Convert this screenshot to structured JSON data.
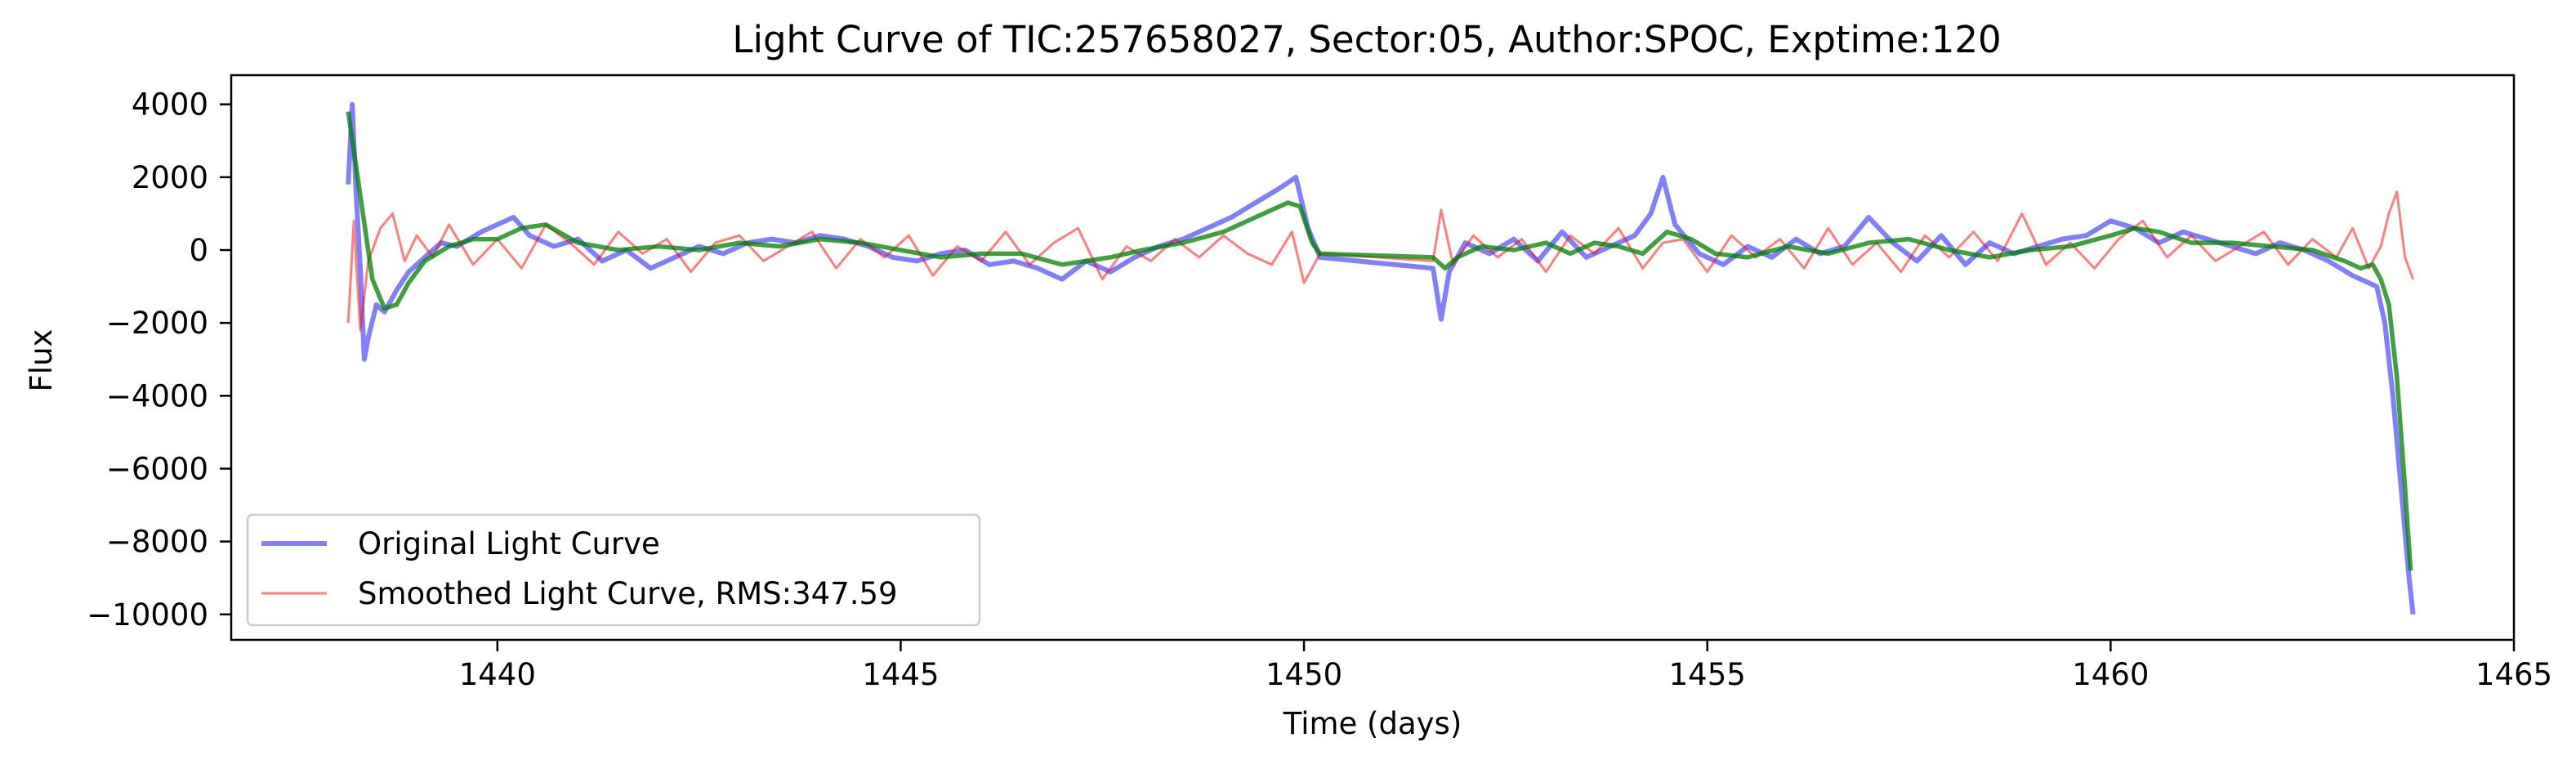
{
  "chart_data": {
    "type": "line",
    "title": "Light Curve of TIC:257658027, Sector:05, Author:SPOC, Exptime:120",
    "xlabel": "Time (days)",
    "ylabel": "Flux",
    "xlim": [
      1436.7,
      1465.0
    ],
    "ylim": [
      -10700,
      4800
    ],
    "xticks": [
      1440,
      1445,
      1450,
      1455,
      1460,
      1465
    ],
    "yticks": [
      4000,
      2000,
      0,
      -2000,
      -4000,
      -6000,
      -8000,
      -10000
    ],
    "xtick_labels": [
      "1440",
      "1445",
      "1450",
      "1455",
      "1460",
      "1465"
    ],
    "ytick_labels": [
      "4000",
      "2000",
      "0",
      "−2000",
      "−4000",
      "−6000",
      "−8000",
      "−10000"
    ],
    "grid": false,
    "legend_position": "lower-left",
    "series": [
      {
        "name": "Original Light Curve",
        "color": "#0000ff",
        "opacity": 0.5,
        "x": [
          1438.15,
          1438.2,
          1438.25,
          1438.3,
          1438.35,
          1438.4,
          1438.5,
          1438.6,
          1438.75,
          1438.9,
          1439.1,
          1439.3,
          1439.5,
          1439.8,
          1440.0,
          1440.2,
          1440.4,
          1440.7,
          1441.0,
          1441.3,
          1441.6,
          1441.9,
          1442.2,
          1442.5,
          1442.8,
          1443.1,
          1443.4,
          1443.7,
          1444.0,
          1444.3,
          1444.6,
          1444.9,
          1445.2,
          1445.5,
          1445.8,
          1446.1,
          1446.4,
          1446.7,
          1447.0,
          1447.3,
          1447.6,
          1447.9,
          1448.2,
          1448.5,
          1448.8,
          1449.1,
          1449.4,
          1449.7,
          1449.9,
          1450.05,
          1450.2,
          1451.6,
          1451.7,
          1451.8,
          1452.0,
          1452.3,
          1452.6,
          1452.9,
          1453.2,
          1453.5,
          1453.8,
          1454.1,
          1454.3,
          1454.45,
          1454.6,
          1454.9,
          1455.2,
          1455.5,
          1455.8,
          1456.1,
          1456.4,
          1456.7,
          1457.0,
          1457.3,
          1457.6,
          1457.9,
          1458.2,
          1458.5,
          1458.8,
          1459.1,
          1459.4,
          1459.7,
          1460.0,
          1460.3,
          1460.6,
          1460.9,
          1461.2,
          1461.5,
          1461.8,
          1462.1,
          1462.4,
          1462.7,
          1463.0,
          1463.2,
          1463.3,
          1463.4,
          1463.5,
          1463.6,
          1463.7,
          1463.75
        ],
        "y": [
          1800,
          4000,
          1500,
          -500,
          -3000,
          -2400,
          -1500,
          -1700,
          -1100,
          -600,
          -200,
          200,
          100,
          500,
          700,
          900,
          400,
          100,
          300,
          -300,
          0,
          -500,
          -200,
          100,
          -100,
          200,
          300,
          200,
          400,
          300,
          100,
          -200,
          -300,
          -100,
          0,
          -400,
          -300,
          -500,
          -800,
          -300,
          -600,
          -200,
          100,
          300,
          600,
          900,
          1300,
          1700,
          2000,
          600,
          -200,
          -500,
          -1900,
          -600,
          200,
          -100,
          300,
          -300,
          500,
          -200,
          100,
          400,
          1000,
          2000,
          700,
          -100,
          -400,
          100,
          -200,
          300,
          -100,
          100,
          900,
          200,
          -300,
          400,
          -400,
          200,
          -100,
          100,
          300,
          400,
          800,
          600,
          200,
          500,
          300,
          100,
          -100,
          200,
          0,
          -300,
          -700,
          -900,
          -1000,
          -2000,
          -4000,
          -6500,
          -9000,
          -10000
        ]
      },
      {
        "name": "Smoothed Light Curve, RMS:347.59",
        "color": "#ff0000",
        "opacity": 0.5,
        "x": [
          1438.15,
          1438.22,
          1438.3,
          1438.4,
          1438.55,
          1438.7,
          1438.85,
          1439.0,
          1439.2,
          1439.4,
          1439.7,
          1440.0,
          1440.3,
          1440.6,
          1440.9,
          1441.2,
          1441.5,
          1441.8,
          1442.1,
          1442.4,
          1442.7,
          1443.0,
          1443.3,
          1443.6,
          1443.9,
          1444.2,
          1444.5,
          1444.8,
          1445.1,
          1445.4,
          1445.7,
          1446.0,
          1446.3,
          1446.6,
          1446.9,
          1447.2,
          1447.5,
          1447.8,
          1448.1,
          1448.4,
          1448.7,
          1449.0,
          1449.3,
          1449.6,
          1449.85,
          1450.0,
          1450.2,
          1451.6,
          1451.7,
          1451.85,
          1452.1,
          1452.4,
          1452.7,
          1453.0,
          1453.3,
          1453.6,
          1453.9,
          1454.2,
          1454.45,
          1454.7,
          1455.0,
          1455.3,
          1455.6,
          1455.9,
          1456.2,
          1456.5,
          1456.8,
          1457.1,
          1457.4,
          1457.7,
          1458.0,
          1458.3,
          1458.6,
          1458.9,
          1459.2,
          1459.5,
          1459.8,
          1460.1,
          1460.4,
          1460.7,
          1461.0,
          1461.3,
          1461.6,
          1461.9,
          1462.2,
          1462.5,
          1462.8,
          1463.0,
          1463.2,
          1463.35,
          1463.45,
          1463.55,
          1463.65,
          1463.75
        ],
        "y": [
          -2000,
          800,
          -2200,
          -300,
          600,
          1000,
          -300,
          400,
          -200,
          700,
          -400,
          300,
          -500,
          700,
          200,
          -400,
          500,
          -100,
          300,
          -600,
          200,
          400,
          -300,
          100,
          500,
          -500,
          300,
          -200,
          400,
          -700,
          100,
          -300,
          500,
          -400,
          200,
          600,
          -800,
          100,
          -300,
          300,
          -200,
          400,
          -100,
          -400,
          500,
          -900,
          -100,
          -300,
          1100,
          -400,
          400,
          -200,
          300,
          -600,
          400,
          -100,
          600,
          -500,
          200,
          300,
          -600,
          400,
          -200,
          300,
          -500,
          600,
          -400,
          200,
          -600,
          400,
          -200,
          500,
          -300,
          1000,
          -400,
          200,
          -500,
          300,
          800,
          -200,
          400,
          -300,
          100,
          500,
          -400,
          300,
          -200,
          600,
          -500,
          100,
          1000,
          1600,
          -200,
          -800
        ]
      },
      {
        "name": "",
        "color": "#008000",
        "opacity": 0.75,
        "x": [
          1438.15,
          1438.3,
          1438.45,
          1438.6,
          1438.75,
          1438.9,
          1439.1,
          1439.4,
          1439.7,
          1440.0,
          1440.3,
          1440.6,
          1441.0,
          1441.5,
          1442.0,
          1442.5,
          1443.0,
          1443.5,
          1444.0,
          1444.5,
          1445.0,
          1445.5,
          1446.0,
          1446.5,
          1447.0,
          1447.3,
          1447.6,
          1448.0,
          1448.5,
          1449.0,
          1449.5,
          1449.8,
          1449.95,
          1450.1,
          1450.2,
          1451.6,
          1451.75,
          1451.9,
          1452.2,
          1452.6,
          1453.0,
          1453.3,
          1453.6,
          1453.9,
          1454.2,
          1454.5,
          1454.8,
          1455.1,
          1455.5,
          1456.0,
          1456.5,
          1457.0,
          1457.5,
          1458.0,
          1458.5,
          1459.0,
          1459.5,
          1460.0,
          1460.3,
          1460.6,
          1461.0,
          1461.5,
          1462.0,
          1462.5,
          1462.9,
          1463.1,
          1463.25,
          1463.35,
          1463.45,
          1463.55,
          1463.65,
          1463.72
        ],
        "y": [
          3800,
          1500,
          -800,
          -1600,
          -1500,
          -900,
          -300,
          100,
          300,
          300,
          600,
          700,
          200,
          0,
          100,
          0,
          200,
          100,
          300,
          200,
          0,
          -200,
          -100,
          -100,
          -400,
          -300,
          -200,
          0,
          200,
          500,
          1000,
          1300,
          1200,
          200,
          -100,
          -200,
          -500,
          -200,
          100,
          0,
          200,
          -100,
          200,
          100,
          -100,
          500,
          300,
          -100,
          -200,
          100,
          -100,
          200,
          300,
          0,
          -200,
          0,
          100,
          400,
          600,
          500,
          200,
          200,
          100,
          0,
          -300,
          -500,
          -400,
          -800,
          -1500,
          -3500,
          -6500,
          -8800
        ]
      }
    ]
  }
}
